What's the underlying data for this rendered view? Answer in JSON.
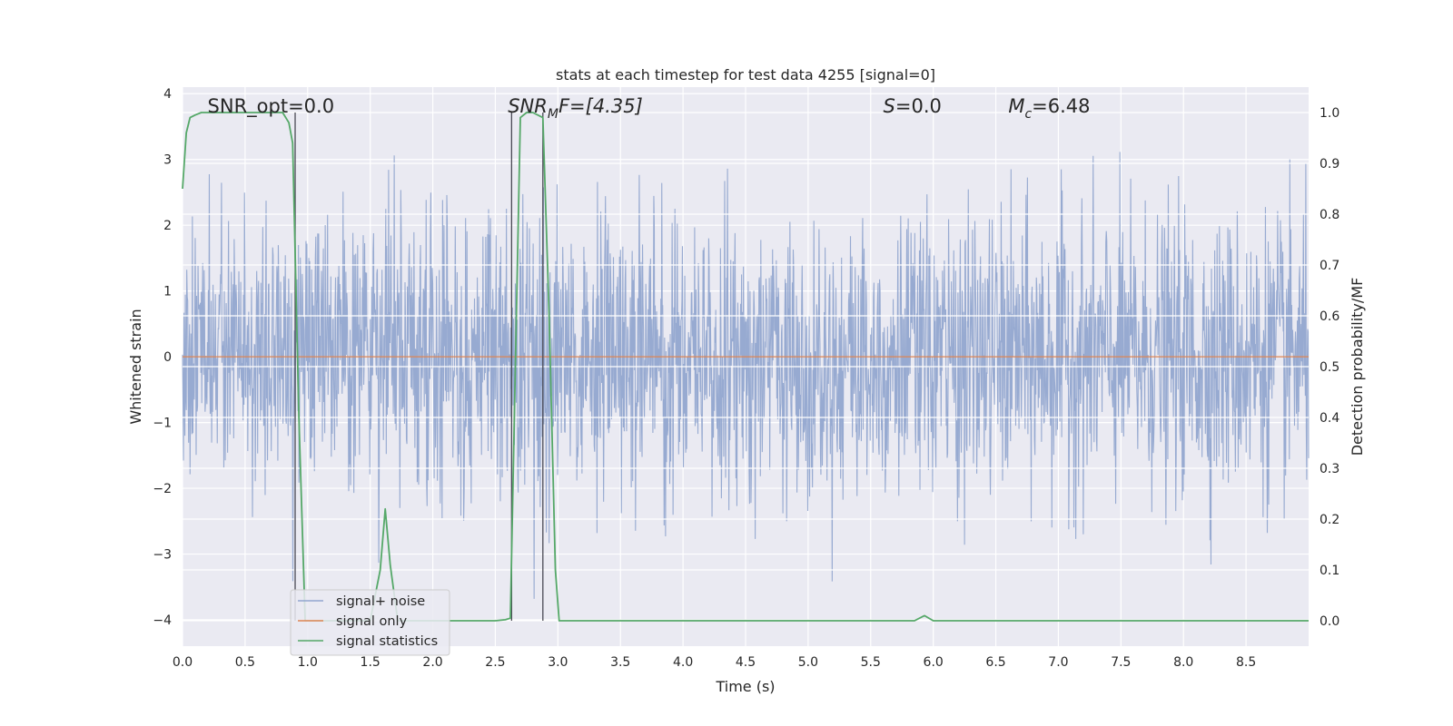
{
  "chart_data": {
    "type": "line",
    "title": "stats at each timestep for test data 4255 [signal=0]",
    "xlabel": "Time (s)",
    "ylabel": "Whitened strain",
    "y2label": "Detection probability/MF",
    "xlim": [
      0,
      9
    ],
    "ylim": [
      -4.4,
      4.1
    ],
    "y2lim": [
      -0.05,
      1.05
    ],
    "xticks": [
      "0.0",
      "0.5",
      "1.0",
      "1.5",
      "2.0",
      "2.5",
      "3.0",
      "3.5",
      "4.0",
      "4.5",
      "5.0",
      "5.5",
      "6.0",
      "6.5",
      "7.0",
      "7.5",
      "8.0",
      "8.5"
    ],
    "yticks": [
      "−4",
      "−3",
      "−2",
      "−1",
      "0",
      "1",
      "2",
      "3",
      "4"
    ],
    "y2ticks": [
      "0.0",
      "0.1",
      "0.2",
      "0.3",
      "0.4",
      "0.5",
      "0.6",
      "0.7",
      "0.8",
      "0.9",
      "1.0"
    ],
    "grid": true,
    "legend_position": "lower-left",
    "annotations": {
      "snr_opt": {
        "label": "SNR_opt=0.0",
        "x": 0.2
      },
      "snr_mf": {
        "base": "SNR",
        "sub": "M",
        "rest": "F=[4.35]",
        "x": 2.6
      },
      "s": {
        "italic": "S",
        "rest": "=0.0",
        "x": 5.6
      },
      "mc": {
        "base": "M",
        "sub": "c",
        "rest": "=6.48",
        "x": 6.6
      }
    },
    "vlines": [
      0.9,
      2.63,
      2.88
    ],
    "series": [
      {
        "name": "signal+ noise",
        "color": "#92a6cf",
        "kind": "noise",
        "sigma": 1.0,
        "samples": 2400
      },
      {
        "name": "signal only",
        "color": "#dd8452",
        "x": [
          0,
          9
        ],
        "y": [
          0,
          0
        ]
      },
      {
        "name": "signal statistics",
        "color": "#55a868",
        "axis": "right",
        "x": [
          0.0,
          0.03,
          0.06,
          0.1,
          0.15,
          0.2,
          0.8,
          0.85,
          0.88,
          0.93,
          0.98,
          1.2,
          1.5,
          1.58,
          1.62,
          1.66,
          1.72,
          1.8,
          2.0,
          2.5,
          2.58,
          2.62,
          2.66,
          2.7,
          2.75,
          2.8,
          2.88,
          2.93,
          2.98,
          3.01,
          3.1,
          5.0,
          5.85,
          5.93,
          6.0,
          6.5,
          8.5,
          9.0
        ],
        "y": [
          0.85,
          0.96,
          0.99,
          0.995,
          1.0,
          1.0,
          1.0,
          0.98,
          0.94,
          0.4,
          0.0,
          0.0,
          0.0,
          0.1,
          0.22,
          0.11,
          0.0,
          0.0,
          0.0,
          0.0,
          0.002,
          0.005,
          0.5,
          0.99,
          1.0,
          1.0,
          0.99,
          0.6,
          0.1,
          0.0,
          0.0,
          0.0,
          0.0,
          0.01,
          0.0,
          0.0,
          0.0,
          0.0
        ]
      }
    ]
  }
}
